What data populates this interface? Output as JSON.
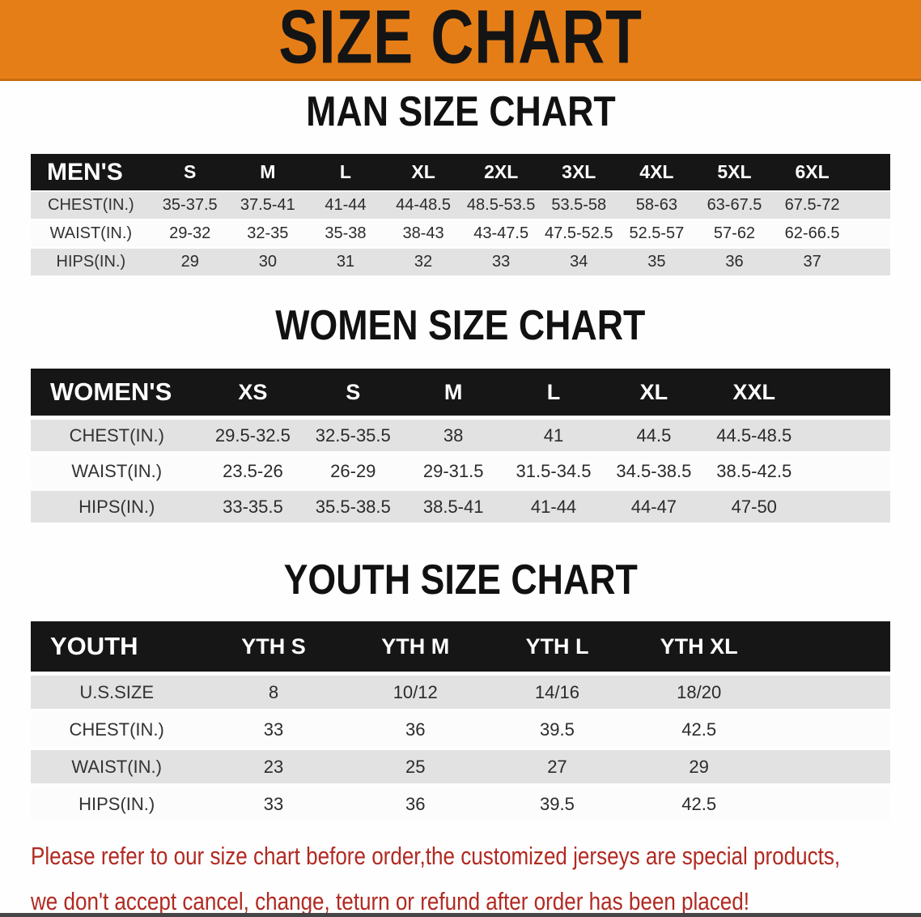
{
  "banner": {
    "title": "SIZE CHART",
    "bg_color": "#E67E17",
    "text_color": "#141414"
  },
  "colors": {
    "header_band": "#161616",
    "row_gray": "#E2E2E2",
    "row_white": "#FCFCFC",
    "disclaimer_text": "#B12A22"
  },
  "sections": [
    {
      "heading": "MAN SIZE CHART",
      "table": {
        "label": "MEN'S",
        "columns": [
          "S",
          "M",
          "L",
          "XL",
          "2XL",
          "3XL",
          "4XL",
          "5XL",
          "6XL"
        ],
        "rows": [
          {
            "label": "CHEST(IN.)",
            "values": [
              "35-37.5",
              "37.5-41",
              "41-44",
              "44-48.5",
              "48.5-53.5",
              "53.5-58",
              "58-63",
              "63-67.5",
              "67.5-72"
            ]
          },
          {
            "label": "WAIST(IN.)",
            "values": [
              "29-32",
              "32-35",
              "35-38",
              "38-43",
              "43-47.5",
              "47.5-52.5",
              "52.5-57",
              "57-62",
              "62-66.5"
            ]
          },
          {
            "label": "HIPS(IN.)",
            "values": [
              "29",
              "30",
              "31",
              "32",
              "33",
              "34",
              "35",
              "36",
              "37"
            ]
          }
        ]
      }
    },
    {
      "heading": "WOMEN SIZE CHART",
      "table": {
        "label": "WOMEN'S",
        "columns": [
          "XS",
          "S",
          "M",
          "L",
          "XL",
          "XXL"
        ],
        "rows": [
          {
            "label": "CHEST(IN.)",
            "values": [
              "29.5-32.5",
              "32.5-35.5",
              "38",
              "41",
              "44.5",
              "44.5-48.5"
            ]
          },
          {
            "label": "WAIST(IN.)",
            "values": [
              "23.5-26",
              "26-29",
              "29-31.5",
              "31.5-34.5",
              "34.5-38.5",
              "38.5-42.5"
            ]
          },
          {
            "label": "HIPS(IN.)",
            "values": [
              "33-35.5",
              "35.5-38.5",
              "38.5-41",
              "41-44",
              "44-47",
              "47-50"
            ]
          }
        ]
      }
    },
    {
      "heading": "YOUTH SIZE CHART",
      "table": {
        "label": "YOUTH",
        "columns": [
          "YTH S",
          "YTH M",
          "YTH L",
          "YTH XL"
        ],
        "rows": [
          {
            "label": "U.S.SIZE",
            "values": [
              "8",
              "10/12",
              "14/16",
              "18/20"
            ]
          },
          {
            "label": "CHEST(IN.)",
            "values": [
              "33",
              "36",
              "39.5",
              "42.5"
            ]
          },
          {
            "label": "WAIST(IN.)",
            "values": [
              "23",
              "25",
              "27",
              "29"
            ]
          },
          {
            "label": "HIPS(IN.)",
            "values": [
              "33",
              "36",
              "39.5",
              "42.5"
            ]
          }
        ]
      }
    }
  ],
  "disclaimer": {
    "line1": "Please refer to our size chart before order,the customized jerseys are special products,",
    "line2": "we don't accept cancel, change, teturn or refund after order has been placed!"
  }
}
